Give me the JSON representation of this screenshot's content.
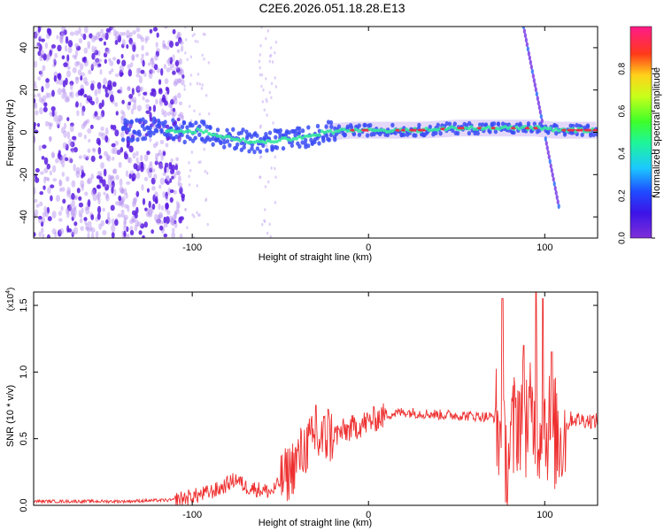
{
  "title": "C2E6.2026.051.18.28.E13",
  "chart_data": [
    {
      "type": "heatmap",
      "name": "spectrogram",
      "xlabel": "Height of straight line (km)",
      "ylabel": "Frequency (Hz)",
      "xlim": [
        -190,
        130
      ],
      "ylim": [
        -50,
        50
      ],
      "xticks": [
        "-100",
        "0",
        "100"
      ],
      "xtick_values": [
        -100,
        0,
        100
      ],
      "yticks": [
        "-40",
        "-20",
        "0",
        "20",
        "40"
      ],
      "ytick_values": [
        -40,
        -20,
        0,
        20,
        40
      ],
      "colorbar": {
        "label": "Normalized spectral amplitude",
        "ticks": [
          "0.0",
          "0.2",
          "0.4",
          "0.6",
          "0.8"
        ],
        "tick_values": [
          0.0,
          0.2,
          0.4,
          0.6,
          0.8
        ],
        "range": [
          0,
          1
        ],
        "colormap": "rainbow (purple-blue-cyan-green-yellow-red-magenta)"
      },
      "features": {
        "noise_region_km": [
          -190,
          -105
        ],
        "ridge_points": [
          [
            -135,
            1
          ],
          [
            -120,
            2
          ],
          [
            -105,
            0
          ],
          [
            -95,
            1
          ],
          [
            -85,
            -2
          ],
          [
            -75,
            -3
          ],
          [
            -65,
            -5
          ],
          [
            -55,
            -4
          ],
          [
            -45,
            -3
          ],
          [
            -35,
            -2
          ],
          [
            -25,
            0
          ],
          [
            -10,
            1
          ],
          [
            10,
            1
          ],
          [
            30,
            1
          ],
          [
            50,
            2
          ],
          [
            70,
            2
          ],
          [
            85,
            2
          ],
          [
            95,
            2
          ],
          [
            105,
            1
          ],
          [
            130,
            1
          ]
        ],
        "chirp_km": [
          88,
          108
        ],
        "chirp_freq_hz": [
          50,
          -35
        ],
        "colors": {
          "strong": "#e8304a",
          "mid": "#35e8a0",
          "weak": "#3a4cf5",
          "noise": "#8a3cf0"
        }
      }
    },
    {
      "type": "line",
      "name": "snr",
      "xlabel": "Height of straight line (km)",
      "ylabel": "SNR (10 * v/v)",
      "scale_label": "(x10",
      "scale_exponent": "4",
      "xlim": [
        -190,
        130
      ],
      "ylim": [
        0,
        1.6
      ],
      "xticks": [
        "-100",
        "0",
        "100"
      ],
      "xtick_values": [
        -100,
        0,
        100
      ],
      "yticks": [
        "0.0",
        "0.5",
        "1.0",
        "1.5"
      ],
      "ytick_values": [
        0.0,
        0.5,
        1.0,
        1.5
      ],
      "line_color": "#ee3030",
      "envelope": [
        [
          -190,
          0.03
        ],
        [
          -140,
          0.03
        ],
        [
          -110,
          0.04
        ],
        [
          -95,
          0.08
        ],
        [
          -85,
          0.12
        ],
        [
          -75,
          0.2
        ],
        [
          -70,
          0.14
        ],
        [
          -55,
          0.1
        ],
        [
          -45,
          0.25
        ],
        [
          -35,
          0.45
        ],
        [
          -25,
          0.5
        ],
        [
          -15,
          0.55
        ],
        [
          -5,
          0.6
        ],
        [
          10,
          0.68
        ],
        [
          20,
          0.7
        ],
        [
          40,
          0.68
        ],
        [
          60,
          0.67
        ],
        [
          72,
          0.66
        ],
        [
          78,
          0.3
        ],
        [
          85,
          0.7
        ],
        [
          95,
          0.6
        ],
        [
          102,
          0.6
        ],
        [
          108,
          0.5
        ],
        [
          115,
          0.65
        ],
        [
          130,
          0.63
        ]
      ],
      "spikes": [
        [
          -30,
          0.75
        ],
        [
          -23,
          0.72
        ],
        [
          76,
          1.55
        ],
        [
          88,
          1.2
        ],
        [
          95,
          1.6
        ],
        [
          99,
          1.55
        ],
        [
          104,
          1.15
        ]
      ]
    }
  ]
}
